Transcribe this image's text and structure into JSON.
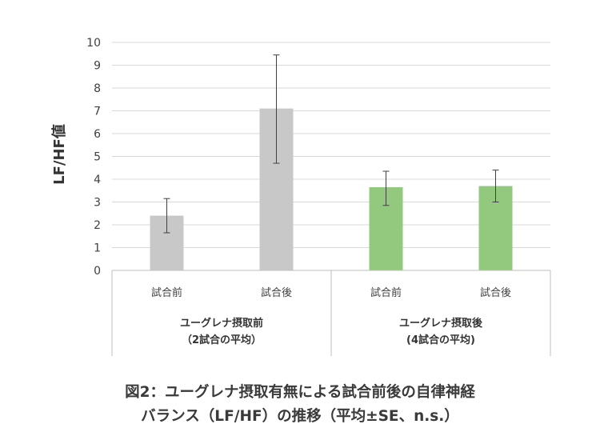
{
  "chart_data": {
    "type": "bar",
    "ylabel": "LF/HF値",
    "ylim": [
      0,
      10
    ],
    "yticks": [
      "0",
      "1",
      "2",
      "3",
      "4",
      "5",
      "6",
      "7",
      "8",
      "9",
      "10"
    ],
    "grid": true,
    "categories": [
      "試合前",
      "試合後",
      "試合前",
      "試合後"
    ],
    "groups": [
      {
        "label_line1": "ユーグレナ摂取前",
        "label_line2": "（2試合の平均）",
        "color": "#c8c8c8"
      },
      {
        "label_line1": "ユーグレナ摂取後",
        "label_line2": "(4試合の平均)",
        "color": "#93c87f"
      }
    ],
    "values": [
      2.4,
      7.1,
      3.65,
      3.7
    ],
    "error_low": [
      1.65,
      4.7,
      2.85,
      3.0
    ],
    "error_high": [
      3.15,
      9.45,
      4.35,
      4.4
    ],
    "bar_group": [
      0,
      0,
      1,
      1
    ]
  },
  "caption": {
    "line1": "図2：ユーグレナ摂取有無による試合前後の自律神経",
    "line2": "バランス（LF/HF）の推移（平均±SE、n.s.）"
  }
}
